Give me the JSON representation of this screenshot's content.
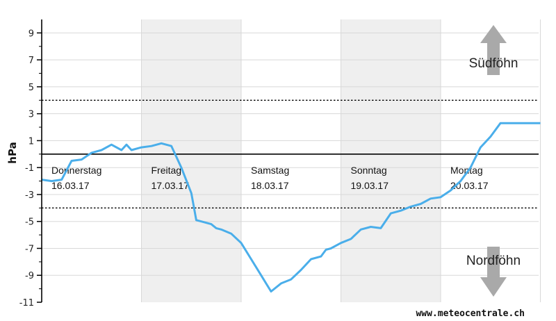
{
  "chart_data": {
    "type": "line",
    "ylabel": "hPa",
    "ylim": [
      -11,
      10
    ],
    "y_ticks": [
      "9",
      "7",
      "5",
      "3",
      "1",
      "-1",
      "-3",
      "-5",
      "-7",
      "-9",
      "-11"
    ],
    "days": [
      {
        "name": "Donnerstag",
        "date": "16.03.17"
      },
      {
        "name": "Freitag",
        "date": "17.03.17"
      },
      {
        "name": "Samstag",
        "date": "18.03.17"
      },
      {
        "name": "Sonntag",
        "date": "19.03.17"
      },
      {
        "name": "Montag",
        "date": "20.03.17"
      }
    ],
    "threshold_lines": [
      4,
      -4
    ],
    "zone_labels": {
      "top": "Südföhn",
      "bottom": "Nordföhn"
    },
    "series": [
      {
        "color": "#4aaeea",
        "x_days": [
          0,
          0.1,
          0.2,
          0.3,
          0.4,
          0.5,
          0.6,
          0.7,
          0.8,
          0.85,
          0.9,
          1.0,
          1.1,
          1.2,
          1.3,
          1.4,
          1.5,
          1.55,
          1.6,
          1.7,
          1.75,
          1.8,
          1.9,
          2.0,
          2.1,
          2.2,
          2.3,
          2.4,
          2.5,
          2.6,
          2.7,
          2.8,
          2.85,
          2.9,
          3.0,
          3.1,
          3.2,
          3.3,
          3.4,
          3.5,
          3.6,
          3.7,
          3.8,
          3.9,
          4.0,
          4.1,
          4.2,
          4.3,
          4.4,
          4.5,
          4.6,
          4.7,
          4.8,
          4.9,
          5.0
        ],
        "y": [
          -1.9,
          -2.0,
          -1.9,
          -0.5,
          -0.4,
          0.1,
          0.3,
          0.7,
          0.3,
          0.7,
          0.3,
          0.5,
          0.6,
          0.8,
          0.6,
          -1.0,
          -2.9,
          -4.9,
          -5.0,
          -5.2,
          -5.5,
          -5.6,
          -5.9,
          -6.6,
          -7.8,
          -9.0,
          -10.2,
          -9.6,
          -9.3,
          -8.6,
          -7.8,
          -7.6,
          -7.1,
          -7.0,
          -6.6,
          -6.3,
          -5.6,
          -5.4,
          -5.5,
          -4.4,
          -4.2,
          -3.9,
          -3.7,
          -3.3,
          -3.2,
          -2.7,
          -2.0,
          -1.0,
          0.5,
          1.3,
          2.3,
          2.3,
          2.3,
          2.3,
          2.3
        ]
      }
    ],
    "source": "www.meteocentrale.ch"
  }
}
